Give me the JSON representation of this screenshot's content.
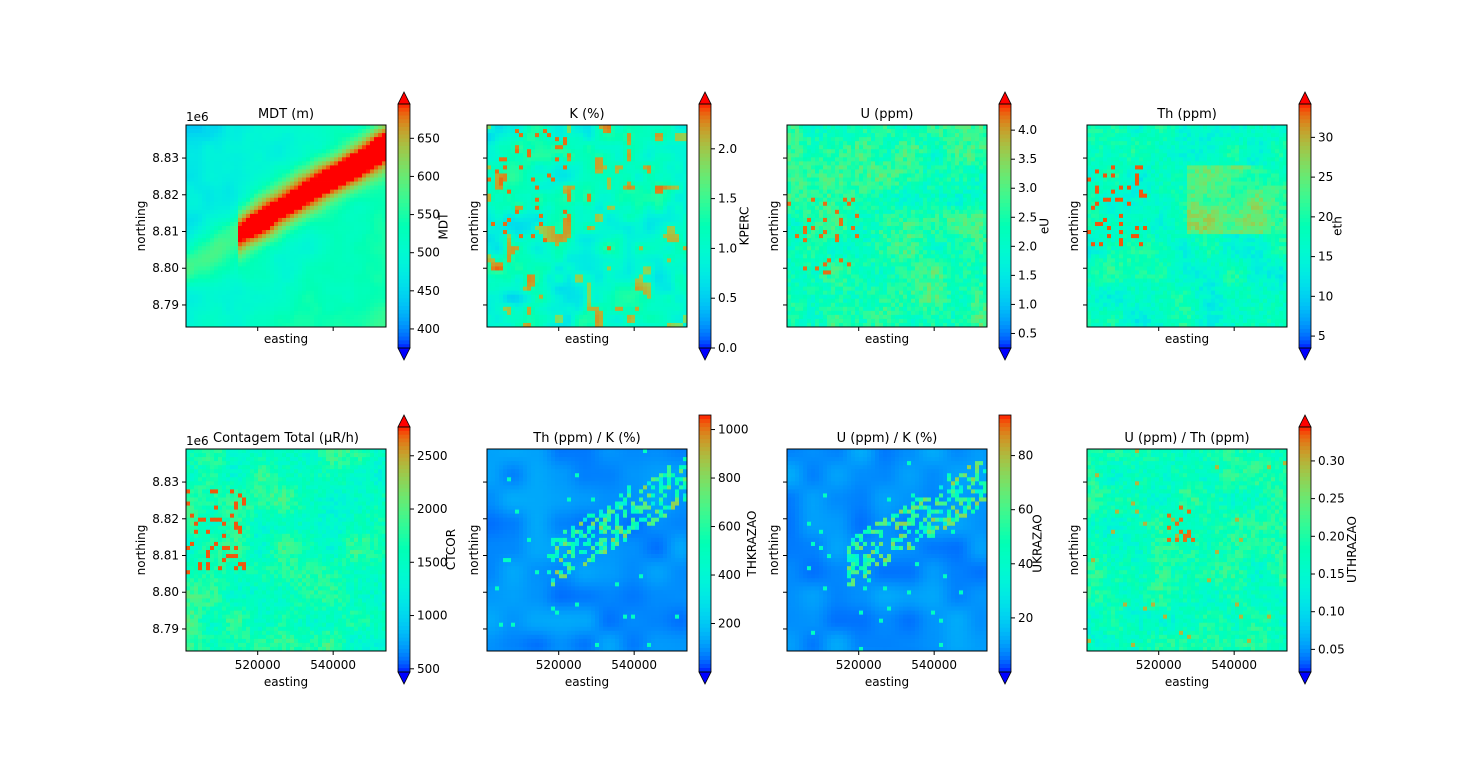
{
  "chart_data": [
    {
      "type": "heatmap",
      "title": "MDT (m)",
      "xlabel": "easting",
      "ylabel": "northing",
      "colorbar_label": "MDT",
      "y_offset_label": "1e6",
      "show_xticklabels": false,
      "show_yticklabels": true,
      "yticks": [
        "8.79",
        "8.80",
        "8.81",
        "8.82",
        "8.83"
      ],
      "clim": [
        375,
        695
      ],
      "colorbar_ticks": [
        "400",
        "450",
        "500",
        "550",
        "600",
        "650"
      ],
      "colorbar_tick_values": [
        400,
        450,
        500,
        550,
        600,
        650
      ],
      "extend": "both"
    },
    {
      "type": "heatmap",
      "title": "K (%)",
      "xlabel": "easting",
      "ylabel": "northing",
      "colorbar_label": "KPERC",
      "show_xticklabels": false,
      "show_yticklabels": false,
      "clim": [
        0,
        2.45
      ],
      "colorbar_ticks": [
        "0.0",
        "0.5",
        "1.0",
        "1.5",
        "2.0"
      ],
      "colorbar_tick_values": [
        0,
        0.5,
        1.0,
        1.5,
        2.0
      ],
      "extend": "both"
    },
    {
      "type": "heatmap",
      "title": "U (ppm)",
      "xlabel": "easting",
      "ylabel": "northing",
      "colorbar_label": "eU",
      "show_xticklabels": false,
      "show_yticklabels": false,
      "clim": [
        0.25,
        4.45
      ],
      "colorbar_ticks": [
        "0.5",
        "1.0",
        "1.5",
        "2.0",
        "2.5",
        "3.0",
        "3.5",
        "4.0"
      ],
      "colorbar_tick_values": [
        0.5,
        1.0,
        1.5,
        2.0,
        2.5,
        3.0,
        3.5,
        4.0
      ],
      "extend": "both"
    },
    {
      "type": "heatmap",
      "title": "Th (ppm)",
      "xlabel": "easting",
      "ylabel": "northing",
      "colorbar_label": "eth",
      "show_xticklabels": false,
      "show_yticklabels": false,
      "clim": [
        3.5,
        34.2
      ],
      "colorbar_ticks": [
        "5",
        "10",
        "15",
        "20",
        "25",
        "30"
      ],
      "colorbar_tick_values": [
        5,
        10,
        15,
        20,
        25,
        30
      ],
      "extend": "both"
    },
    {
      "type": "heatmap",
      "title": "Contagem Total (µR/h)",
      "xlabel": "easting",
      "ylabel": "northing",
      "colorbar_label": "CTCOR",
      "y_offset_label": "1e6",
      "show_xticklabels": true,
      "show_yticklabels": true,
      "xticks": [
        "520000",
        "540000"
      ],
      "yticks": [
        "8.79",
        "8.80",
        "8.81",
        "8.82",
        "8.83"
      ],
      "clim": [
        470,
        2770
      ],
      "colorbar_ticks": [
        "500",
        "1000",
        "1500",
        "2000",
        "2500"
      ],
      "colorbar_tick_values": [
        500,
        1000,
        1500,
        2000,
        2500
      ],
      "extend": "both"
    },
    {
      "type": "heatmap",
      "title": "Th (ppm) / K (%)",
      "xlabel": "easting",
      "ylabel": "northing",
      "colorbar_label": "THKRAZAO",
      "show_xticklabels": true,
      "show_yticklabels": false,
      "xticks": [
        "520000",
        "540000"
      ],
      "clim": [
        0,
        1060
      ],
      "colorbar_ticks": [
        "200",
        "400",
        "600",
        "800",
        "1000"
      ],
      "colorbar_tick_values": [
        200,
        400,
        600,
        800,
        1000
      ],
      "extend": "min"
    },
    {
      "type": "heatmap",
      "title": "U (ppm) / K (%)",
      "xlabel": "easting",
      "ylabel": "northing",
      "colorbar_label": "UKRAZAO",
      "show_xticklabels": true,
      "show_yticklabels": false,
      "xticks": [
        "520000",
        "540000"
      ],
      "clim": [
        0,
        95
      ],
      "colorbar_ticks": [
        "20",
        "40",
        "60",
        "80"
      ],
      "colorbar_tick_values": [
        20,
        40,
        60,
        80
      ],
      "extend": "min"
    },
    {
      "type": "heatmap",
      "title": "U (ppm) / Th (ppm)",
      "xlabel": "easting",
      "ylabel": "northing",
      "colorbar_label": "UTHRAZAO",
      "show_xticklabels": true,
      "show_yticklabels": false,
      "xticks": [
        "520000",
        "540000"
      ],
      "clim": [
        0.02,
        0.345
      ],
      "colorbar_ticks": [
        "0.05",
        "0.10",
        "0.15",
        "0.20",
        "0.25",
        "0.30"
      ],
      "colorbar_tick_values": [
        0.05,
        0.1,
        0.15,
        0.2,
        0.25,
        0.3
      ],
      "extend": "both"
    }
  ],
  "axes": {
    "x_range": [
      501000,
      554000
    ],
    "y_range": [
      8784000,
      8839000
    ],
    "xtick_values": [
      520000,
      540000
    ],
    "ytick_values": [
      8790000,
      8800000,
      8810000,
      8820000,
      8830000
    ]
  },
  "colormap": "rainbow"
}
